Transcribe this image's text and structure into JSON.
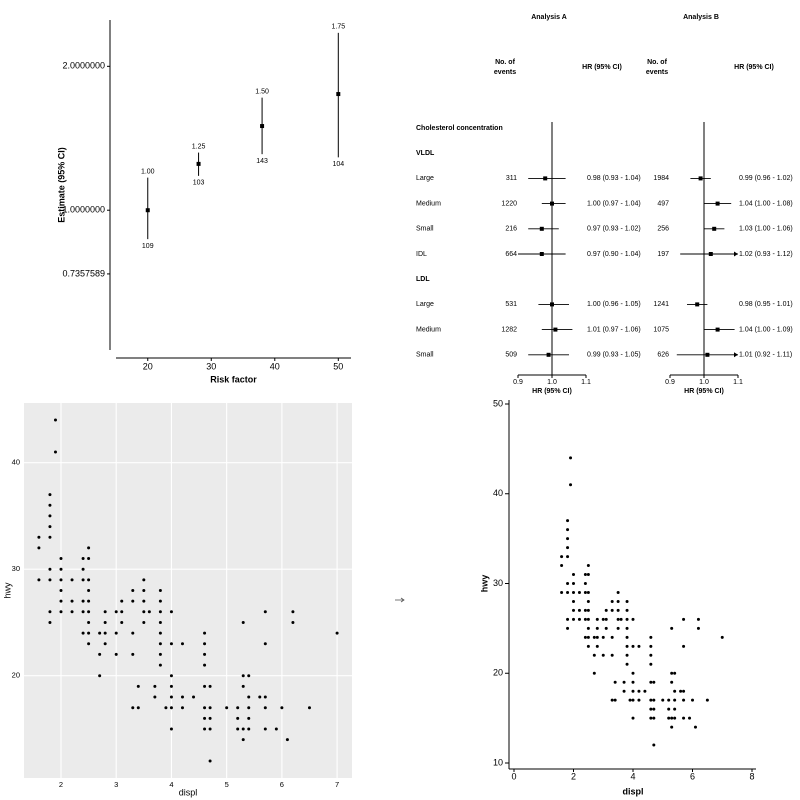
{
  "chart_data": [
    {
      "type": "estimate",
      "xlabel": "Risk factor",
      "ylabel": "Estimate (95% CI)",
      "x": [
        20,
        28,
        38,
        50
      ],
      "values": [
        1,
        1.25,
        1.5,
        1.75
      ],
      "value_labels": [
        "1.00",
        "1.25",
        "1.50",
        "1.75"
      ],
      "lower": [
        0.87,
        1.18,
        1.31,
        1.29
      ],
      "upper": [
        1.17,
        1.32,
        1.72,
        2.35
      ],
      "n": [
        109,
        103,
        143,
        104
      ],
      "xlim": [
        15,
        52
      ],
      "ylim": [
        0.51,
        2.5
      ],
      "log_y": true,
      "color": "#000000",
      "xticks": [
        20,
        30,
        40,
        50
      ],
      "yticks": [
        0.7357589,
        {
          "value": 1,
          "label": "1.0000000"
        },
        {
          "value": 2,
          "label": "2.0000000"
        }
      ]
    },
    {
      "type": "forest",
      "section": "Cholesterol concentration",
      "groups": [
        {
          "name": "VLDL",
          "rows": [
            "Large",
            "Medium",
            "Small",
            "IDL"
          ]
        },
        {
          "name": "LDL",
          "rows": [
            "Large",
            "Medium",
            "Small"
          ]
        }
      ],
      "analyses": [
        {
          "title": "Analysis A",
          "events_header": [
            "No. of",
            "events"
          ],
          "hr_header": "HR (95% CI)",
          "xlabel": "HR (95% CI)",
          "xlim": [
            0.9,
            1.1
          ],
          "xticks": [
            0.9,
            {
              "value": 1,
              "label": "1.0"
            },
            1.1
          ],
          "ref_line": 1,
          "events": [
            311,
            1220,
            216,
            664,
            531,
            1282,
            509
          ],
          "hr": [
            0.98,
            1.0,
            0.97,
            0.97,
            1.0,
            1.01,
            0.99
          ],
          "lo": [
            0.93,
            0.97,
            0.93,
            0.9,
            0.96,
            0.97,
            0.93
          ],
          "hi": [
            1.04,
            1.04,
            1.02,
            1.04,
            1.05,
            1.06,
            1.05
          ],
          "value_labels": [
            "0.98 (0.93 - 1.04)",
            "1.00 (0.97 - 1.04)",
            "0.97 (0.93 - 1.02)",
            "0.97 (0.90 - 1.04)",
            "1.00 (0.96 - 1.05)",
            "1.01 (0.97 - 1.06)",
            "0.99 (0.93 - 1.05)"
          ]
        },
        {
          "title": "Analysis B",
          "events_header": [
            "No. of",
            "events"
          ],
          "hr_header": "HR (95% CI)",
          "xlabel": "HR (95% CI)",
          "xlim": [
            0.9,
            1.1
          ],
          "xticks": [
            0.9,
            {
              "value": 1,
              "label": "1.0"
            },
            1.1
          ],
          "ref_line": 1,
          "events": [
            1984,
            497,
            256,
            197,
            1241,
            1075,
            626
          ],
          "hr": [
            0.99,
            1.04,
            1.03,
            1.02,
            0.98,
            1.04,
            1.01
          ],
          "lo": [
            0.96,
            1.0,
            1.0,
            0.93,
            0.95,
            1.0,
            0.92
          ],
          "hi": [
            1.02,
            1.08,
            1.06,
            1.12,
            1.01,
            1.09,
            1.11
          ],
          "value_labels": [
            "0.99 (0.96 - 1.02)",
            "1.04 (1.00 - 1.08)",
            "1.03 (1.00 - 1.06)",
            "1.02 (0.93 - 1.12)",
            "0.98 (0.95 - 1.01)",
            "1.04 (1.00 - 1.09)",
            "1.01 (0.92 - 1.11)"
          ]
        }
      ]
    },
    {
      "type": "scatter",
      "xlabel": "displ",
      "ylabel": "hwy",
      "background": "#ebebeb",
      "grid": true,
      "color": "#000000",
      "xlim": [
        1.33,
        7.27
      ],
      "ylim": [
        10.4,
        45.6
      ],
      "xticks": [
        2,
        3,
        4,
        5,
        6,
        7
      ],
      "yticks": [
        20,
        30,
        40
      ],
      "x": [
        1.6,
        1.6,
        1.6,
        1.8,
        1.8,
        1.8,
        1.8,
        1.8,
        1.8,
        1.8,
        1.8,
        1.8,
        1.9,
        1.9,
        2,
        2,
        2,
        2,
        2,
        2,
        2.2,
        2.2,
        2.2,
        2.4,
        2.4,
        2.4,
        2.4,
        2.4,
        2.4,
        2.5,
        2.5,
        2.5,
        2.5,
        2.5,
        2.5,
        2.5,
        2.5,
        2.5,
        2.7,
        2.7,
        2.7,
        2.8,
        2.8,
        2.8,
        2.8,
        3,
        3,
        3,
        3.1,
        3.1,
        3.1,
        3.3,
        3.3,
        3.3,
        3.3,
        3.3,
        3.4,
        3.4,
        3.5,
        3.5,
        3.5,
        3.5,
        3.5,
        3.6,
        3.7,
        3.7,
        3.8,
        3.8,
        3.8,
        3.8,
        3.8,
        3.8,
        3.8,
        3.8,
        3.9,
        4,
        4,
        4,
        4,
        4,
        4,
        4,
        4.2,
        4.2,
        4.2,
        4.4,
        4.6,
        4.6,
        4.6,
        4.6,
        4.6,
        4.6,
        4.6,
        4.6,
        4.7,
        4.7,
        4.7,
        4.7,
        4.7,
        5,
        5.2,
        5.2,
        5.2,
        5.3,
        5.3,
        5.3,
        5.3,
        5.3,
        5.4,
        5.4,
        5.4,
        5.4,
        5.4,
        5.6,
        5.7,
        5.7,
        5.7,
        5.7,
        5.7,
        5.9,
        6,
        6.1,
        6.2,
        6.2,
        6.5,
        7
      ],
      "values": [
        29,
        32,
        33,
        25,
        26,
        29,
        30,
        33,
        34,
        35,
        36,
        37,
        41,
        44,
        26,
        27,
        28,
        29,
        30,
        31,
        26,
        27,
        29,
        24,
        26,
        27,
        29,
        30,
        31,
        23,
        24,
        25,
        26,
        27,
        28,
        29,
        31,
        32,
        20,
        22,
        24,
        23,
        24,
        25,
        26,
        22,
        24,
        26,
        25,
        26,
        27,
        17,
        22,
        24,
        27,
        28,
        17,
        19,
        25,
        26,
        27,
        28,
        29,
        26,
        18,
        19,
        21,
        22,
        23,
        24,
        25,
        26,
        27,
        28,
        17,
        15,
        17,
        18,
        19,
        20,
        23,
        26,
        17,
        18,
        23,
        18,
        15,
        16,
        17,
        19,
        21,
        22,
        23,
        24,
        12,
        15,
        16,
        17,
        19,
        17,
        15,
        16,
        17,
        14,
        15,
        19,
        20,
        25,
        15,
        16,
        17,
        18,
        20,
        18,
        15,
        17,
        18,
        23,
        26,
        15,
        17,
        14,
        25,
        26,
        17,
        24
      ]
    },
    {
      "type": "scatter",
      "xlabel": "displ",
      "ylabel": "hwy",
      "grid": false,
      "color": "#000000",
      "xlim": [
        0,
        8
      ],
      "ylim": [
        10,
        50
      ],
      "xticks": [
        0,
        2,
        4,
        6,
        8
      ],
      "yticks": [
        10,
        20,
        30,
        40,
        50
      ],
      "x": [
        1.6,
        1.6,
        1.6,
        1.8,
        1.8,
        1.8,
        1.8,
        1.8,
        1.8,
        1.8,
        1.8,
        1.8,
        1.9,
        1.9,
        2,
        2,
        2,
        2,
        2,
        2,
        2.2,
        2.2,
        2.2,
        2.4,
        2.4,
        2.4,
        2.4,
        2.4,
        2.4,
        2.5,
        2.5,
        2.5,
        2.5,
        2.5,
        2.5,
        2.5,
        2.5,
        2.5,
        2.7,
        2.7,
        2.7,
        2.8,
        2.8,
        2.8,
        2.8,
        3,
        3,
        3,
        3.1,
        3.1,
        3.1,
        3.3,
        3.3,
        3.3,
        3.3,
        3.3,
        3.4,
        3.4,
        3.5,
        3.5,
        3.5,
        3.5,
        3.5,
        3.6,
        3.7,
        3.7,
        3.8,
        3.8,
        3.8,
        3.8,
        3.8,
        3.8,
        3.8,
        3.8,
        3.9,
        4,
        4,
        4,
        4,
        4,
        4,
        4,
        4.2,
        4.2,
        4.2,
        4.4,
        4.6,
        4.6,
        4.6,
        4.6,
        4.6,
        4.6,
        4.6,
        4.6,
        4.7,
        4.7,
        4.7,
        4.7,
        4.7,
        5,
        5.2,
        5.2,
        5.2,
        5.3,
        5.3,
        5.3,
        5.3,
        5.3,
        5.4,
        5.4,
        5.4,
        5.4,
        5.4,
        5.6,
        5.7,
        5.7,
        5.7,
        5.7,
        5.7,
        5.9,
        6,
        6.1,
        6.2,
        6.2,
        6.5,
        7
      ],
      "values": [
        29,
        32,
        33,
        25,
        26,
        29,
        30,
        33,
        34,
        35,
        36,
        37,
        41,
        44,
        26,
        27,
        28,
        29,
        30,
        31,
        26,
        27,
        29,
        24,
        26,
        27,
        29,
        30,
        31,
        23,
        24,
        25,
        26,
        27,
        28,
        29,
        31,
        32,
        20,
        22,
        24,
        23,
        24,
        25,
        26,
        22,
        24,
        26,
        25,
        26,
        27,
        17,
        22,
        24,
        27,
        28,
        17,
        19,
        25,
        26,
        27,
        28,
        29,
        26,
        18,
        19,
        21,
        22,
        23,
        24,
        25,
        26,
        27,
        28,
        17,
        15,
        17,
        18,
        19,
        20,
        23,
        26,
        17,
        18,
        23,
        18,
        15,
        16,
        17,
        19,
        21,
        22,
        23,
        24,
        12,
        15,
        16,
        17,
        19,
        17,
        15,
        16,
        17,
        14,
        15,
        19,
        20,
        25,
        15,
        16,
        17,
        18,
        20,
        18,
        15,
        17,
        18,
        23,
        26,
        15,
        17,
        14,
        25,
        26,
        17,
        24
      ]
    }
  ]
}
